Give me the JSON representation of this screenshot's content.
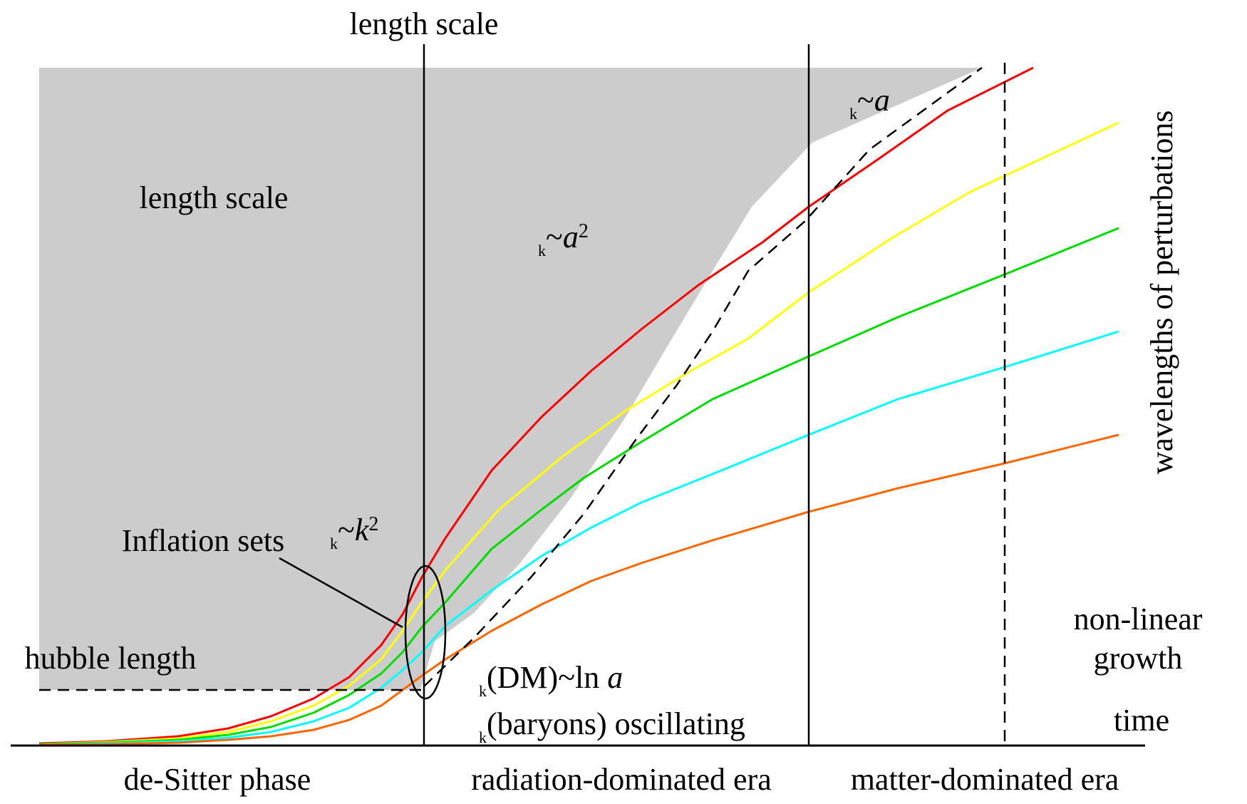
{
  "labels": {
    "top_length_scale": "length scale",
    "shaded_length_scale": "length scale",
    "hubble_length": "hubble length",
    "inflation_sets": "Inflation sets",
    "time": "time",
    "non_linear_line1": "non-linear",
    "non_linear_line2": "growth",
    "wavelengths": "wavelengths of perturbations",
    "phase_desitter": "de-Sitter phase",
    "phase_radiation": "radiation-dominated era",
    "phase_matter": "matter-dominated era"
  },
  "formulas": {
    "k_sq": {
      "sub": "k",
      "mid": "~",
      "var": "k",
      "sup": "2"
    },
    "a_sq": {
      "sub": "k",
      "mid": "~",
      "var": "a",
      "sup": "2"
    },
    "a_lin": {
      "sub": "k",
      "mid": "~",
      "var": "a"
    },
    "dm": {
      "sub": "k",
      "text": "(DM)~ln ",
      "var": "a"
    },
    "baryons": {
      "sub": "k",
      "text": "(baryons) oscillating"
    }
  },
  "colors": {
    "shade": "#cccccc",
    "axis": "#000000",
    "curves": [
      "#ff0000",
      "#ffff00",
      "#00dd00",
      "#00ffff",
      "#ff6600"
    ]
  },
  "curve_names": [
    "red",
    "yellow",
    "green",
    "cyan",
    "orange"
  ]
}
